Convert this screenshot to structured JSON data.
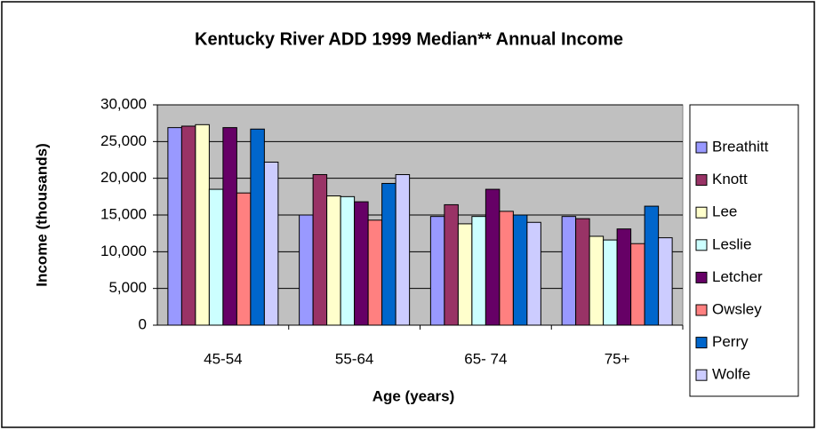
{
  "chart_data": {
    "type": "bar",
    "title": "Kentucky River ADD 1999 Median** Annual Income",
    "x_label": "Age (years)",
    "y_label": "Income (thousands)",
    "categories": [
      "45-54",
      "55-64",
      "65- 74",
      "75+"
    ],
    "series": [
      {
        "name": "Breathitt",
        "color": "#9999ff",
        "values": [
          26900,
          15000,
          14800,
          14800
        ]
      },
      {
        "name": "Knott",
        "color": "#993366",
        "values": [
          27100,
          20500,
          16400,
          14500
        ]
      },
      {
        "name": "Lee",
        "color": "#ffffcc",
        "values": [
          27300,
          17600,
          13800,
          12100
        ]
      },
      {
        "name": "Leslie",
        "color": "#ccffff",
        "values": [
          18500,
          17500,
          14800,
          11600
        ]
      },
      {
        "name": "Letcher",
        "color": "#660066",
        "values": [
          26900,
          16800,
          18500,
          13100
        ]
      },
      {
        "name": "Owsley",
        "color": "#ff8080",
        "values": [
          18000,
          14300,
          15500,
          11100
        ]
      },
      {
        "name": "Perry",
        "color": "#0066cc",
        "values": [
          26700,
          19300,
          15000,
          16200
        ]
      },
      {
        "name": "Wolfe",
        "color": "#ccccff",
        "values": [
          22200,
          20500,
          14000,
          11900
        ]
      }
    ],
    "ylim": [
      0,
      30000
    ],
    "yticks": [
      0,
      {
        "value": 5000,
        "label": "5,000"
      },
      {
        "value": 10000,
        "label": "10,000"
      },
      {
        "value": 15000,
        "label": "15,000"
      },
      {
        "value": 20000,
        "label": "20,000"
      },
      {
        "value": 25000,
        "label": "25,000"
      },
      {
        "value": 30000,
        "label": "30,000"
      }
    ],
    "grid": true,
    "legend": "right",
    "plot_background": "#c0c0c0"
  }
}
